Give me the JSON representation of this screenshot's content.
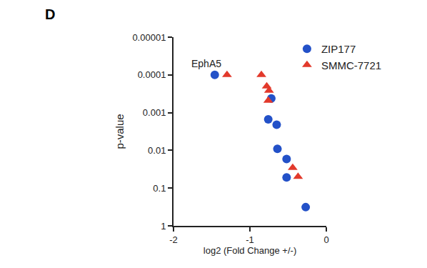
{
  "chart_data": {
    "type": "scatter",
    "title": "D",
    "x_label": "log2 (Fold Change +/-)",
    "y_label": "p-value",
    "log": "y",
    "grid": false,
    "legend": "top right",
    "xlim": [
      -2,
      0
    ],
    "xticks": [
      -2,
      -1,
      0
    ],
    "ylim": [
      1,
      1e-05
    ],
    "yticks": [
      1e-05,
      0.0001,
      0.001,
      0.01,
      0.1,
      1
    ],
    "series": [
      {
        "name": "ZIP177",
        "color": "#2351c8",
        "marker": "circle",
        "x": [
          -1.46,
          -0.72,
          -0.76,
          -0.65,
          -0.64,
          -0.52,
          -0.52,
          -0.27
        ],
        "values": [
          0.0001,
          0.00042,
          0.0015,
          0.0021,
          0.0091,
          0.017,
          0.052,
          0.32
        ]
      },
      {
        "name": "SMMC-7721",
        "color": "#e2392b",
        "marker": "triangle-up",
        "x": [
          -1.3,
          -0.85,
          -0.78,
          -0.75,
          -0.76,
          -0.44,
          -0.37
        ],
        "values": [
          0.0001,
          0.0001,
          0.0002,
          0.00026,
          0.00048,
          0.029,
          0.05
        ]
      }
    ],
    "annotations": [
      {
        "text": "EphA5",
        "x": -1.46,
        "y": 0.0001
      }
    ]
  }
}
